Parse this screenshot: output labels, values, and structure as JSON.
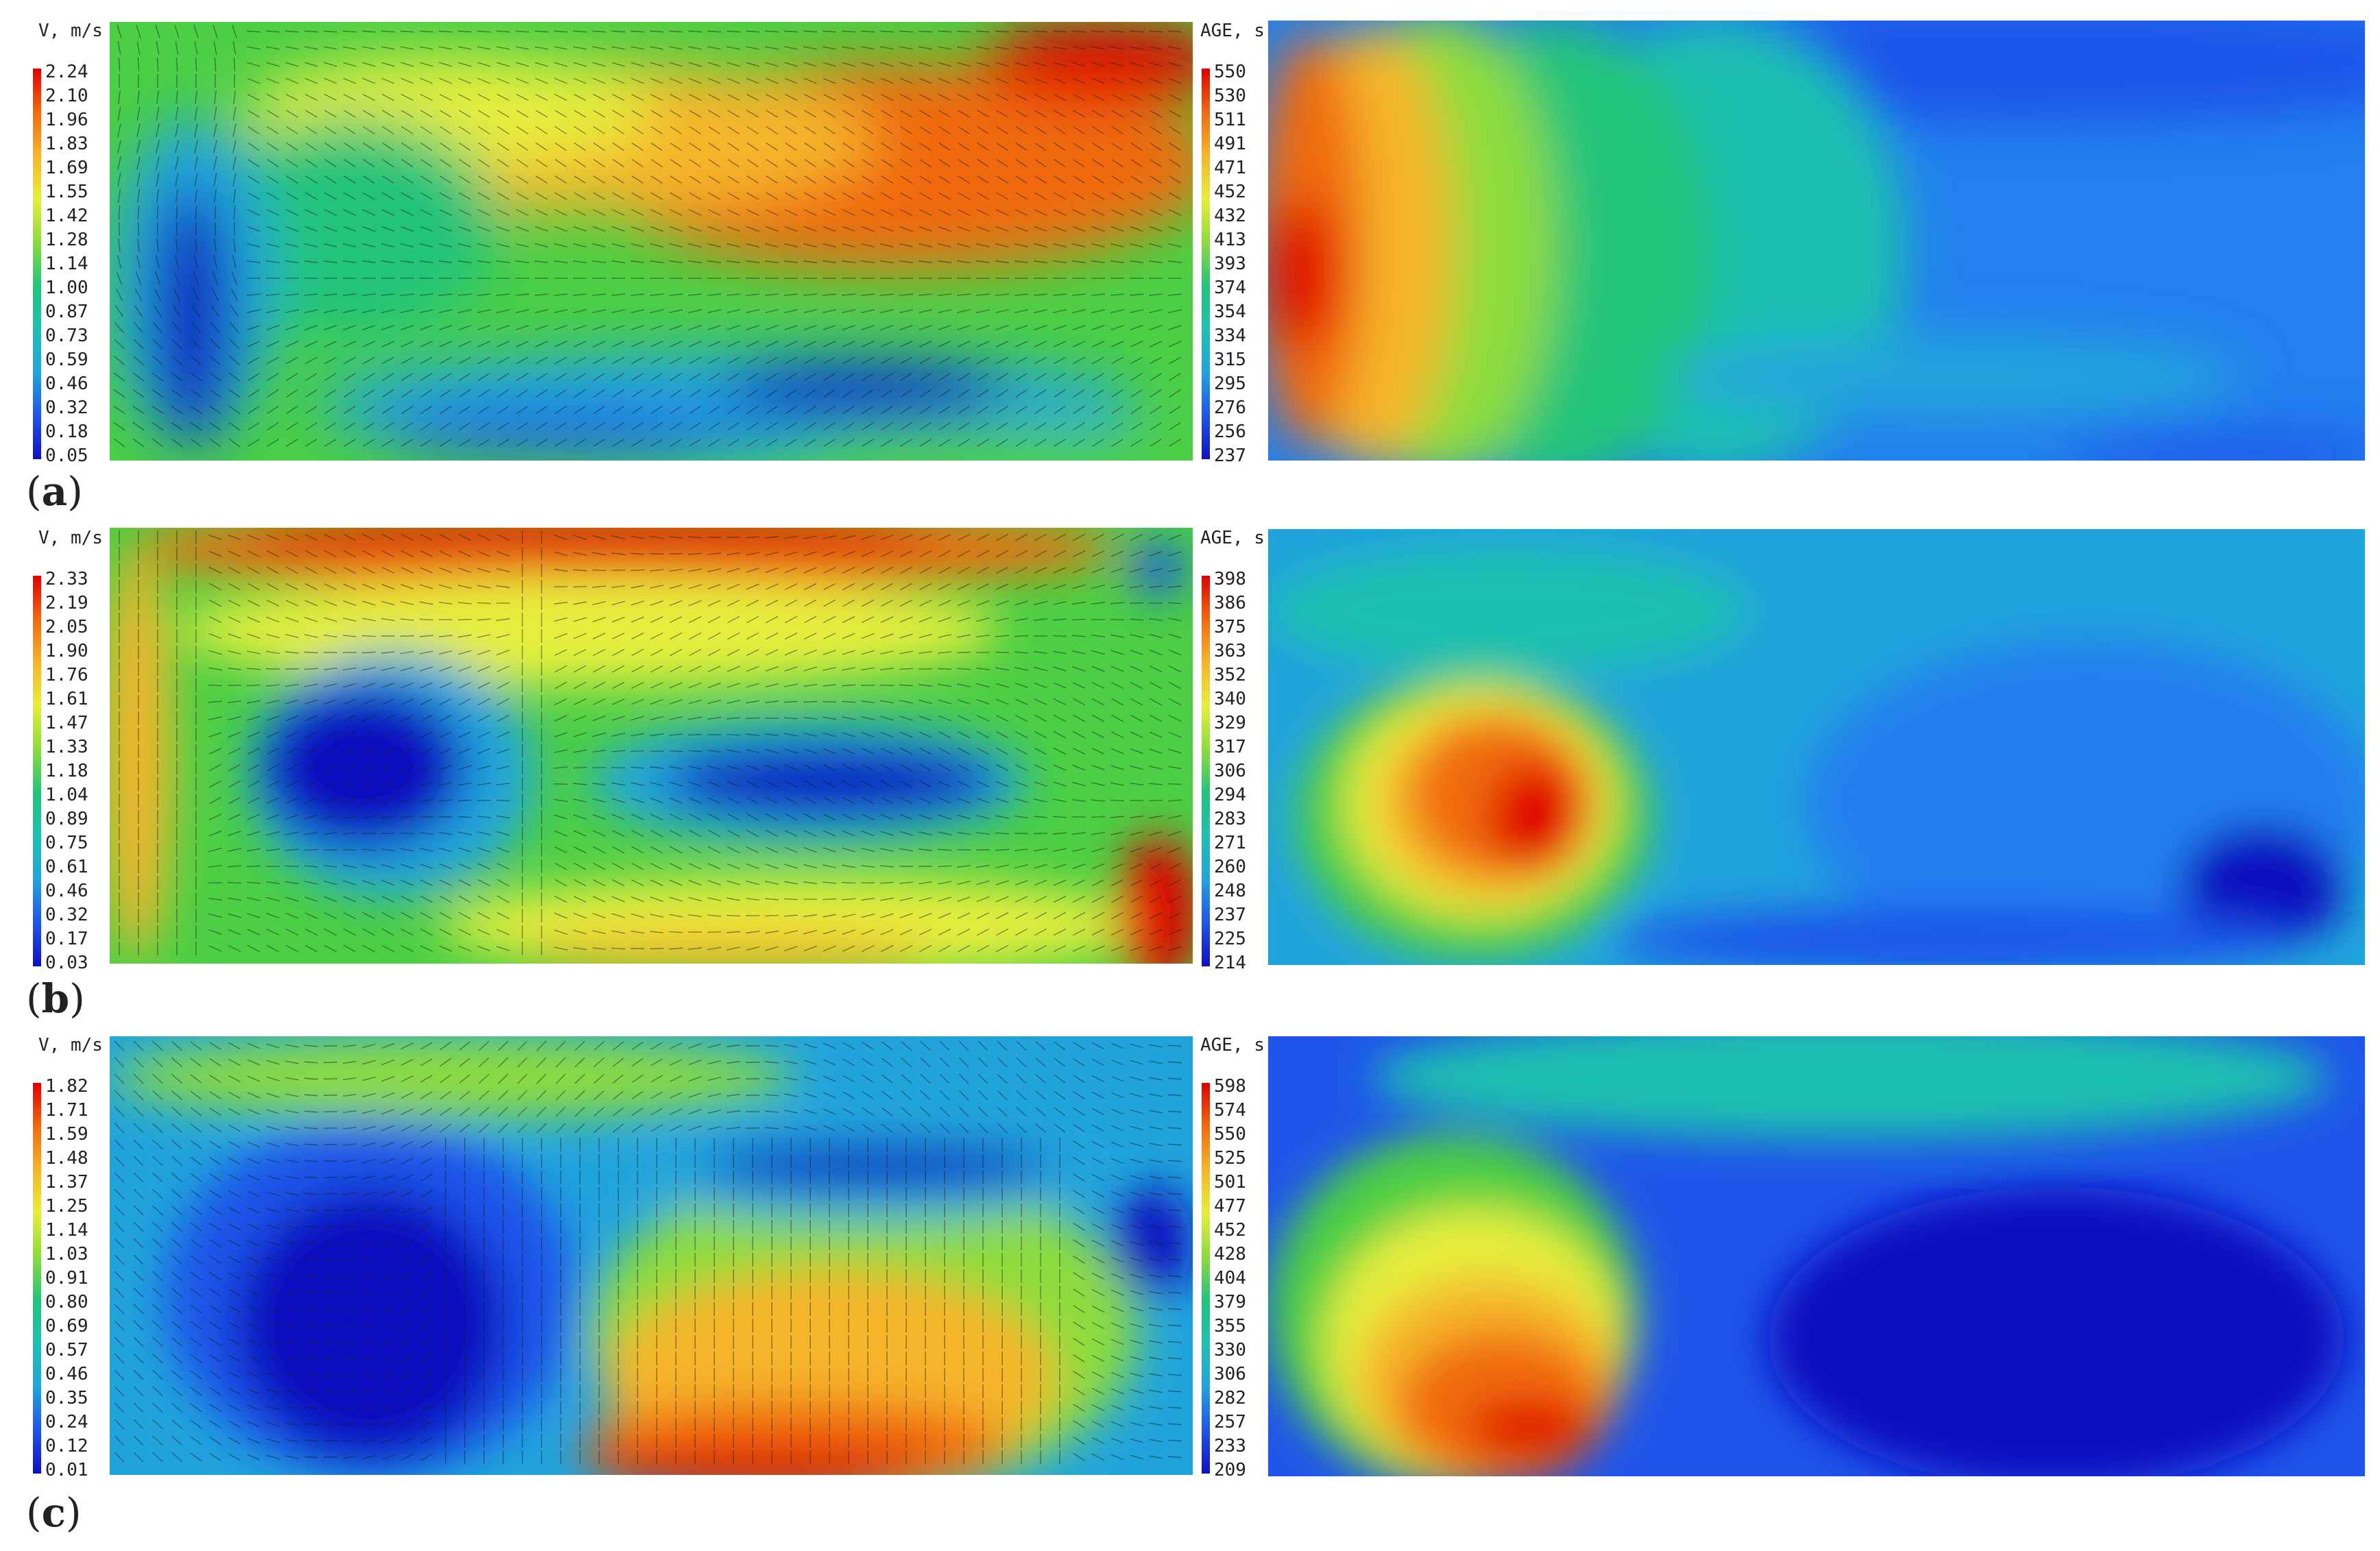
{
  "rows": [
    {
      "label_open": "(",
      "label_letter": "a",
      "label_close": ")",
      "velocity": {
        "title": "V, m/s",
        "ticks": [
          "2.24",
          "2.10",
          "1.96",
          "1.83",
          "1.69",
          "1.55",
          "1.42",
          "1.28",
          "1.14",
          "1.00",
          "0.87",
          "0.73",
          "0.59",
          "0.46",
          "0.32",
          "0.18",
          "0.05"
        ]
      },
      "age": {
        "title": "AGE, s",
        "ticks": [
          "550",
          "530",
          "511",
          "491",
          "471",
          "452",
          "432",
          "413",
          "393",
          "374",
          "354",
          "334",
          "315",
          "295",
          "276",
          "256",
          "237"
        ]
      }
    },
    {
      "label_open": "(",
      "label_letter": "b",
      "label_close": ")",
      "velocity": {
        "title": "V, m/s",
        "ticks": [
          "2.33",
          "2.19",
          "2.05",
          "1.90",
          "1.76",
          "1.61",
          "1.47",
          "1.33",
          "1.18",
          "1.04",
          "0.89",
          "0.75",
          "0.61",
          "0.46",
          "0.32",
          "0.17",
          "0.03"
        ]
      },
      "age": {
        "title": "AGE, s",
        "ticks": [
          "398",
          "386",
          "375",
          "363",
          "352",
          "340",
          "329",
          "317",
          "306",
          "294",
          "283",
          "271",
          "260",
          "248",
          "237",
          "225",
          "214"
        ]
      }
    },
    {
      "label_open": "(",
      "label_letter": "c",
      "label_close": ")",
      "velocity": {
        "title": "V, m/s",
        "ticks": [
          "1.82",
          "1.71",
          "1.59",
          "1.48",
          "1.37",
          "1.25",
          "1.14",
          "1.03",
          "0.91",
          "0.80",
          "0.69",
          "0.57",
          "0.46",
          "0.35",
          "0.24",
          "0.12",
          "0.01"
        ]
      },
      "age": {
        "title": "AGE, s",
        "ticks": [
          "598",
          "574",
          "550",
          "525",
          "501",
          "477",
          "452",
          "428",
          "404",
          "379",
          "355",
          "330",
          "306",
          "282",
          "257",
          "233",
          "209"
        ]
      }
    }
  ],
  "colormap": [
    "#e00000",
    "#ec3c0c",
    "#f06a10",
    "#f39020",
    "#f5b52a",
    "#f4d83a",
    "#e6ee3c",
    "#bfe63a",
    "#8ddc3c",
    "#4ccf44",
    "#22c47a",
    "#1ec0b0",
    "#21a4dc",
    "#2380ee",
    "#1f55ea",
    "#1a30dd",
    "#1010c0"
  ]
}
